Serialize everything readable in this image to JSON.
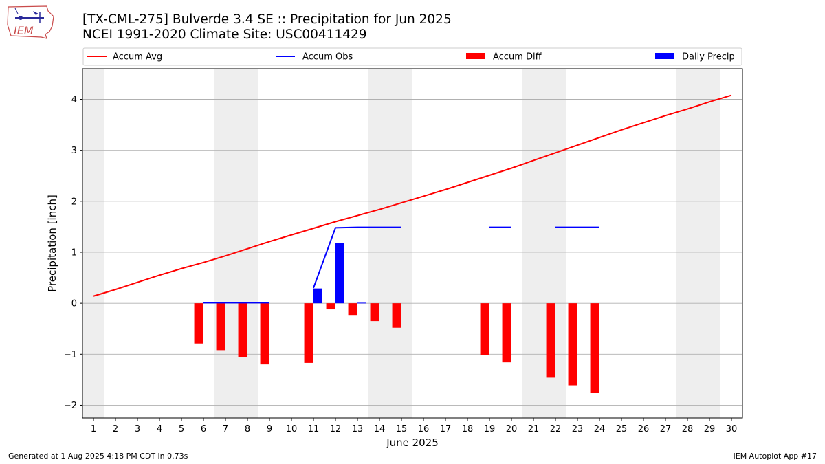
{
  "header": {
    "title_line1": "[TX-CML-275] Bulverde 3.4 SE :: Precipitation for Jun 2025",
    "title_line2": "NCEI 1991-2020 Climate Site: USC00411429",
    "logo_text": "IEM"
  },
  "footer": {
    "generated": "Generated at 1 Aug 2025 4:18 PM CDT in 0.73s",
    "app": "IEM Autoplot App #17"
  },
  "chart_data": {
    "type": "bar",
    "xlabel": "June 2025",
    "ylabel": "Precipitation [inch]",
    "xlim": [
      0.5,
      30.5
    ],
    "ylim": [
      -2.25,
      4.6
    ],
    "x_ticks": [
      1,
      2,
      3,
      4,
      5,
      6,
      7,
      8,
      9,
      10,
      11,
      12,
      13,
      14,
      15,
      16,
      17,
      18,
      19,
      20,
      21,
      22,
      23,
      24,
      25,
      26,
      27,
      28,
      29,
      30
    ],
    "y_ticks": [
      -2,
      -1,
      0,
      1,
      2,
      3,
      4
    ],
    "grid": "y",
    "weekend_shading": [
      [
        0.5,
        1.5
      ],
      [
        6.5,
        8.5
      ],
      [
        13.5,
        15.5
      ],
      [
        20.5,
        22.5
      ],
      [
        27.5,
        29.5
      ]
    ],
    "legend_position": "top",
    "colors": {
      "accum_avg": "#ff0000",
      "accum_obs": "#0000ff",
      "accum_diff": "#ff0000",
      "daily_precip": "#0000ff",
      "weekend": "#eeeeee",
      "grid": "#b0b0b0"
    },
    "series": [
      {
        "name": "Accum Avg",
        "kind": "line",
        "x": [
          1,
          2,
          3,
          4,
          5,
          6,
          7,
          8,
          9,
          10,
          11,
          12,
          13,
          14,
          15,
          16,
          17,
          18,
          19,
          20,
          21,
          22,
          23,
          24,
          25,
          26,
          27,
          28,
          29,
          30
        ],
        "values": [
          0.14,
          0.27,
          0.41,
          0.55,
          0.68,
          0.8,
          0.93,
          1.07,
          1.21,
          1.34,
          1.47,
          1.6,
          1.72,
          1.84,
          1.97,
          2.1,
          2.23,
          2.37,
          2.51,
          2.65,
          2.8,
          2.95,
          3.1,
          3.25,
          3.4,
          3.54,
          3.68,
          3.81,
          3.95,
          4.08
        ]
      },
      {
        "name": "Accum Obs",
        "kind": "line",
        "segments": [
          {
            "x": [
              6,
              7,
              8,
              9
            ],
            "values": [
              0.01,
              0.01,
              0.01,
              0.01
            ]
          },
          {
            "x": [
              11,
              12,
              13,
              14,
              15
            ],
            "values": [
              0.3,
              1.48,
              1.49,
              1.49,
              1.49
            ]
          },
          {
            "x": [
              19,
              20
            ],
            "values": [
              1.49,
              1.49
            ]
          },
          {
            "x": [
              22,
              23,
              24
            ],
            "values": [
              1.49,
              1.49,
              1.49
            ]
          }
        ]
      },
      {
        "name": "Accum Diff",
        "kind": "bar",
        "x": [
          6,
          7,
          8,
          9,
          11,
          12,
          13,
          14,
          15,
          19,
          20,
          22,
          23,
          24
        ],
        "values": [
          -0.79,
          -0.92,
          -1.06,
          -1.2,
          -1.17,
          -0.12,
          -0.23,
          -0.35,
          -0.48,
          -1.02,
          -1.16,
          -1.46,
          -1.61,
          -1.76
        ]
      },
      {
        "name": "Daily Precip",
        "kind": "bar",
        "x": [
          11,
          12,
          13
        ],
        "values": [
          0.29,
          1.18,
          0.01
        ]
      }
    ]
  }
}
